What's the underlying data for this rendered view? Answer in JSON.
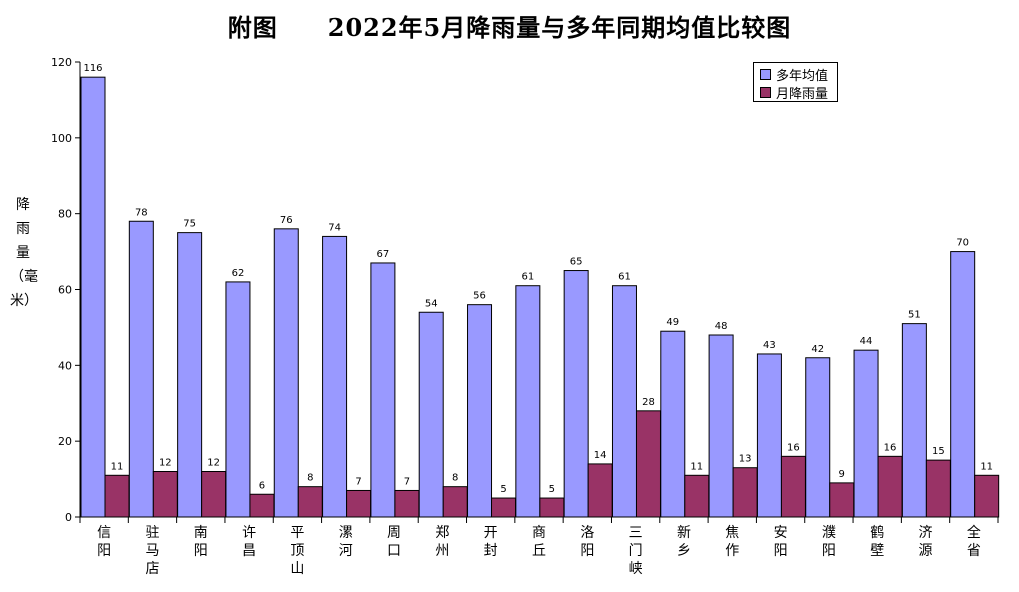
{
  "chart_data": {
    "type": "bar",
    "title": "附图　　2022年5月降雨量与多年同期均值比较图",
    "ylabel": "降雨量（毫米）",
    "ylim": [
      0,
      120
    ],
    "yticks": [
      0,
      20,
      40,
      60,
      80,
      100,
      120
    ],
    "grid": false,
    "legend_position": "top-right",
    "categories": [
      "信阳",
      "驻马店",
      "南阳",
      "许昌",
      "平顶山",
      "漯河",
      "周口",
      "郑州",
      "开封",
      "商丘",
      "洛阳",
      "三门峡",
      "新乡",
      "焦作",
      "安阳",
      "濮阳",
      "鹤壁",
      "济源",
      "全省"
    ],
    "series": [
      {
        "name": "多年均值",
        "color": "#9999ff",
        "values": [
          116,
          78,
          75,
          62,
          76,
          74,
          67,
          54,
          56,
          61,
          65,
          61,
          49,
          48,
          43,
          42,
          44,
          51,
          70
        ]
      },
      {
        "name": "月降雨量",
        "color": "#993366",
        "values": [
          11,
          12,
          12,
          6,
          8,
          7,
          7,
          8,
          5,
          5,
          14,
          28,
          11,
          13,
          16,
          9,
          16,
          15,
          11
        ]
      }
    ]
  }
}
